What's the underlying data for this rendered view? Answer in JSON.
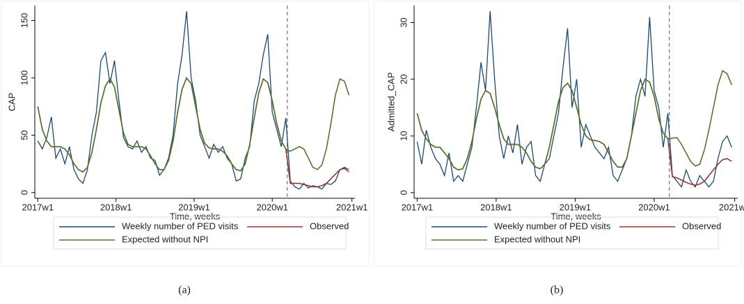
{
  "chart_data": [
    {
      "type": "line",
      "y_label": "CAP",
      "x_label": "Time, weeks",
      "caption": "(a)",
      "xlim": [
        -2,
        211
      ],
      "ylim": [
        -5,
        163
      ],
      "xticks": [
        {
          "value": 0,
          "label": "2017w1"
        },
        {
          "value": 52,
          "label": "2018w1"
        },
        {
          "value": 104,
          "label": "2019w1"
        },
        {
          "value": 156,
          "label": "2020w1"
        },
        {
          "value": 209,
          "label": "2021w1"
        }
      ],
      "yticks": [
        0,
        50,
        100,
        150
      ],
      "intervention_week": 166,
      "x": [
        0,
        3,
        6,
        9,
        12,
        15,
        18,
        21,
        24,
        27,
        30,
        33,
        36,
        39,
        42,
        45,
        48,
        51,
        54,
        57,
        60,
        63,
        66,
        69,
        72,
        75,
        78,
        81,
        84,
        87,
        90,
        93,
        96,
        99,
        102,
        105,
        108,
        111,
        114,
        117,
        120,
        123,
        126,
        129,
        132,
        135,
        138,
        141,
        144,
        147,
        150,
        153,
        156,
        159,
        162,
        165,
        168,
        171,
        174,
        177,
        180,
        183,
        186,
        189,
        192,
        195,
        198,
        201,
        204,
        207
      ],
      "series": [
        {
          "name": "Weekly number of PED visits",
          "color": "#1a476f",
          "values": [
            45,
            38,
            48,
            66,
            30,
            38,
            25,
            40,
            20,
            12,
            8,
            20,
            50,
            70,
            115,
            122,
            95,
            115,
            80,
            48,
            40,
            38,
            45,
            35,
            40,
            30,
            28,
            15,
            20,
            30,
            50,
            95,
            120,
            158,
            100,
            80,
            50,
            40,
            30,
            42,
            35,
            40,
            30,
            25,
            10,
            12,
            30,
            40,
            80,
            95,
            120,
            138,
            70,
            55,
            40,
            65,
            10,
            5,
            3,
            8,
            4,
            6,
            5,
            3,
            8,
            7,
            10,
            20,
            22,
            20
          ]
        },
        {
          "name": "Observed",
          "color": "#90353b",
          "values": [
            75,
            55,
            45,
            40,
            40,
            40,
            38,
            33,
            25,
            20,
            18,
            22,
            35,
            55,
            78,
            93,
            99,
            92,
            72,
            52,
            42,
            40,
            40,
            40,
            38,
            32,
            25,
            20,
            20,
            28,
            45,
            70,
            90,
            100,
            95,
            75,
            55,
            43,
            39,
            38,
            38,
            36,
            32,
            25,
            20,
            19,
            25,
            42,
            65,
            87,
            99,
            96,
            80,
            60,
            45,
            38,
            8,
            8,
            8,
            7,
            6,
            5,
            5,
            6,
            8,
            12,
            16,
            20,
            21,
            18
          ]
        },
        {
          "name": "Expected without NPI",
          "color": "#55752f",
          "values": [
            75,
            55,
            45,
            40,
            40,
            40,
            38,
            33,
            25,
            20,
            18,
            22,
            35,
            55,
            78,
            93,
            99,
            92,
            72,
            52,
            42,
            40,
            40,
            40,
            38,
            32,
            25,
            20,
            20,
            28,
            45,
            70,
            90,
            100,
            95,
            75,
            55,
            43,
            39,
            38,
            38,
            36,
            32,
            25,
            20,
            19,
            25,
            42,
            65,
            87,
            99,
            96,
            80,
            60,
            45,
            38,
            36,
            38,
            40,
            38,
            30,
            22,
            20,
            24,
            38,
            60,
            85,
            99,
            97,
            85
          ]
        }
      ]
    },
    {
      "type": "line",
      "y_label": "Admitted_CAP",
      "x_label": "Time, weeks",
      "caption": "(b)",
      "xlim": [
        -2,
        211
      ],
      "ylim": [
        -1,
        33
      ],
      "xticks": [
        {
          "value": 0,
          "label": "2017w1"
        },
        {
          "value": 52,
          "label": "2018w1"
        },
        {
          "value": 104,
          "label": "2019w1"
        },
        {
          "value": 156,
          "label": "2020w1"
        },
        {
          "value": 209,
          "label": "2021w1"
        }
      ],
      "yticks": [
        0,
        10,
        20,
        30
      ],
      "intervention_week": 166,
      "x": [
        0,
        3,
        6,
        9,
        12,
        15,
        18,
        21,
        24,
        27,
        30,
        33,
        36,
        39,
        42,
        45,
        48,
        51,
        54,
        57,
        60,
        63,
        66,
        69,
        72,
        75,
        78,
        81,
        84,
        87,
        90,
        93,
        96,
        99,
        102,
        105,
        108,
        111,
        114,
        117,
        120,
        123,
        126,
        129,
        132,
        135,
        138,
        141,
        144,
        147,
        150,
        153,
        156,
        159,
        162,
        165,
        168,
        171,
        174,
        177,
        180,
        183,
        186,
        189,
        192,
        195,
        198,
        201,
        204,
        207
      ],
      "series": [
        {
          "name": "Weekly number of PED visits",
          "color": "#1a476f",
          "values": [
            9,
            5,
            11,
            8,
            6,
            5,
            3,
            7,
            2,
            3,
            2,
            5,
            8,
            15,
            23,
            18,
            32,
            20,
            10,
            6,
            10,
            7,
            12,
            5,
            8,
            9,
            3,
            2,
            5,
            6,
            10,
            14,
            22,
            29,
            15,
            20,
            8,
            12,
            10,
            8,
            7,
            6,
            8,
            3,
            2,
            4,
            6,
            10,
            17,
            20,
            17,
            31,
            18,
            15,
            8,
            14,
            3,
            2,
            1,
            4,
            2,
            1,
            3,
            2,
            1,
            2,
            6,
            9,
            10,
            8
          ]
        },
        {
          "name": "Observed",
          "color": "#90353b",
          "values": [
            14,
            11,
            9.5,
            8.5,
            8,
            8,
            7,
            6,
            4.5,
            4,
            4.2,
            6,
            9,
            13,
            16.5,
            18,
            17.5,
            15,
            12,
            9.5,
            8.5,
            8.5,
            8.5,
            8,
            7,
            5.5,
            4.5,
            4.2,
            5,
            8,
            12,
            16,
            18.5,
            19.3,
            18,
            15,
            12,
            10,
            9.3,
            9.2,
            9,
            8.5,
            7,
            5.5,
            4.5,
            4.5,
            6,
            10,
            14,
            18,
            20,
            19.5,
            17,
            13,
            10.5,
            9.5,
            2.8,
            2.6,
            2.2,
            1.8,
            1.5,
            1.3,
            1.5,
            2,
            3,
            4,
            5,
            5.8,
            6,
            5.5
          ]
        },
        {
          "name": "Expected without NPI",
          "color": "#55752f",
          "values": [
            14,
            11,
            9.5,
            8.5,
            8,
            8,
            7,
            6,
            4.5,
            4,
            4.2,
            6,
            9,
            13,
            16.5,
            18,
            17.5,
            15,
            12,
            9.5,
            8.5,
            8.5,
            8.5,
            8,
            7,
            5.5,
            4.5,
            4.2,
            5,
            8,
            12,
            16,
            18.5,
            19.3,
            18,
            15,
            12,
            10,
            9.3,
            9.2,
            9,
            8.5,
            7,
            5.5,
            4.5,
            4.5,
            6,
            10,
            14,
            18,
            20,
            19.5,
            17,
            13,
            10.5,
            9.5,
            9.6,
            9.7,
            8.5,
            7,
            5.5,
            4.7,
            5,
            7.5,
            11,
            15,
            19,
            21.5,
            21,
            19
          ]
        }
      ]
    }
  ]
}
